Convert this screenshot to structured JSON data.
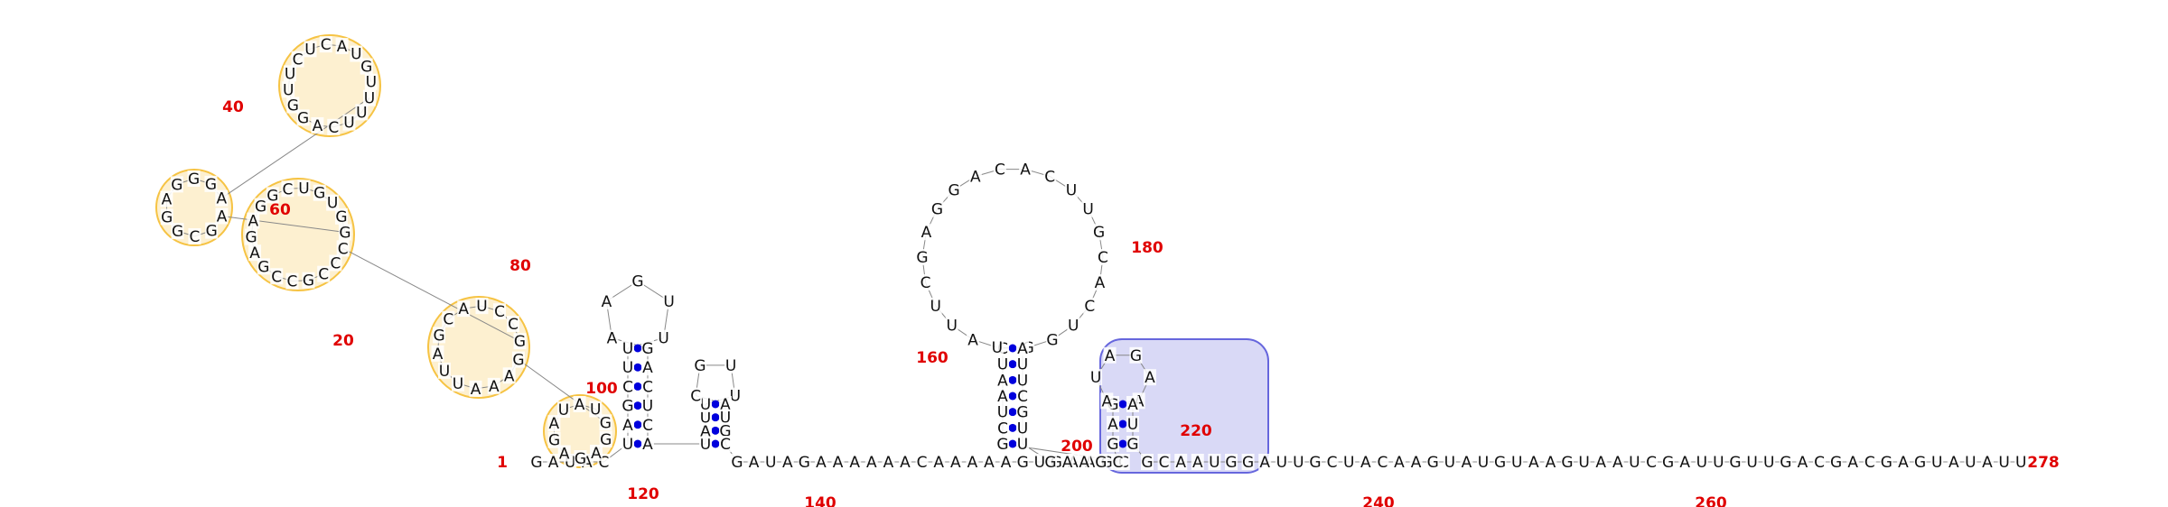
{
  "diagram": {
    "type": "rna-secondary-structure",
    "length_label": "278",
    "colors": {
      "bases": "#111111",
      "backbone": "#888888",
      "pairs": "#0000dd",
      "numbers": "#e00000",
      "highlight_yellow": "#f6c343",
      "highlight_blue": "#6666dd"
    },
    "number_labels": [
      {
        "value": "1",
        "base": 1
      },
      {
        "value": "20",
        "base": 20
      },
      {
        "value": "40",
        "base": 40
      },
      {
        "value": "60",
        "base": 60
      },
      {
        "value": "80",
        "base": 80
      },
      {
        "value": "100",
        "base": 100
      },
      {
        "value": "120",
        "base": 120
      },
      {
        "value": "140",
        "base": 140
      },
      {
        "value": "160",
        "base": 160
      },
      {
        "value": "180",
        "base": 180
      },
      {
        "value": "200",
        "base": 200
      },
      {
        "value": "220",
        "base": 220
      },
      {
        "value": "240",
        "base": 240
      },
      {
        "value": "260",
        "base": 260
      },
      {
        "value": "278",
        "base": 278
      }
    ],
    "segments": [
      {
        "name": "start-run",
        "seq": "GAUAC"
      },
      {
        "name": "hairpin-103",
        "seq": "UAGCUUUUGAAGACUCAUAUUUUGCAUGCCUUCA"
      },
      {
        "name": "mid-run",
        "seq": "GAUAGAAAAAACAAAAAGUGAAGC"
      },
      {
        "name": "hairpin-170",
        "seq": "GCUAAUCGGUCACGUUCACAGGAGCUUAUAUUCGUUGAGAAGAUAAUGU"
      },
      {
        "name": "tail-run",
        "seq": "GCAAUGGAUUGCUACAAGUAUGUAAGUAAUCGAUUGUUGACGACGAGUAUAUU"
      }
    ],
    "left_domain": [
      {
        "name": "domain-bases-1",
        "seq": "GAGAGAUAUGGAAAUUAGCAUCCGCCCGCCGAGAGGCUGUGGAGCGG"
      },
      {
        "name": "domain-bases-2",
        "seq": "AGGGAUUUCAGGUUCUCAUGUCUGAACCCUUCAUAGGAAAUAAAGAGG"
      }
    ]
  }
}
